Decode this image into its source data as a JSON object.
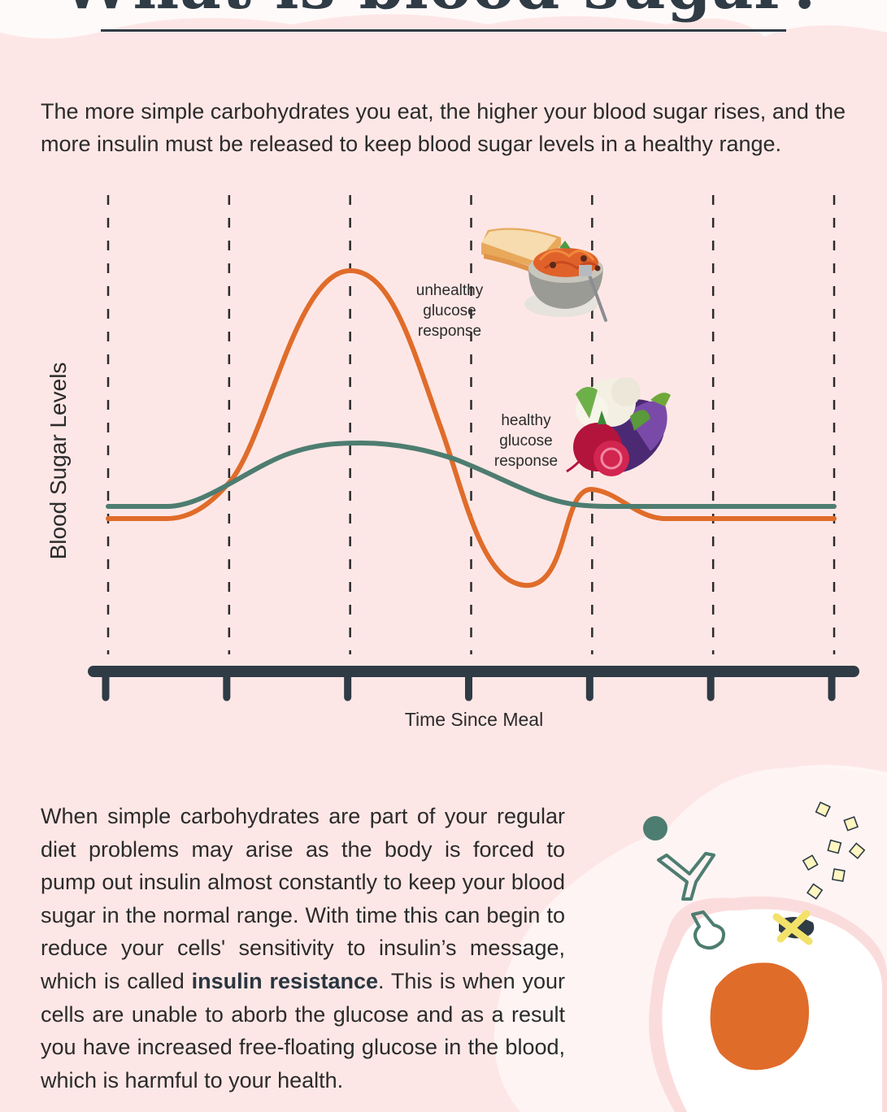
{
  "header": {
    "title": "What is blood sugar?"
  },
  "intro": {
    "text": "The more simple carbohydrates you eat, the higher your blood sugar rises, and the more insulin must be released to keep blood sugar levels in a healthy range."
  },
  "chart_data": {
    "type": "line",
    "ylabel": "Blood Sugar Levels",
    "xlabel": "Time Since Meal",
    "x_ticks": 7,
    "grid": "vertical-dashed",
    "series": [
      {
        "name": "unhealthy glucose response",
        "label_lines": [
          "unhealthy",
          "glucose",
          "response"
        ],
        "color": "#e06c2a",
        "shape": "high spike, then dip below baseline, small rebound, return to baseline"
      },
      {
        "name": "healthy glucose response",
        "label_lines": [
          "healthy",
          "glucose",
          "response"
        ],
        "color": "#4d7d70",
        "shape": "gentle rise and fall back to baseline"
      }
    ],
    "illustrations": [
      "bread-pasta-icon",
      "vegetables-icon"
    ]
  },
  "body": {
    "text_before": "When simple carbohydrates are part of your regular diet problems may arise as the body is forced to pump out insulin almost constantly to keep your blood sugar in the normal range. With time this can begin to reduce your cells' sensitivity to insulin’s message, which is called ",
    "bold_term": "insulin resistance",
    "text_after": ". This is when your cells are unable to aborb the glucose and as a result you have increased free-floating glucose in the blood, which is harmful to your health."
  },
  "colors": {
    "background": "#fde7e6",
    "unhealthy": "#e06c2a",
    "healthy": "#4d7d70",
    "axis": "#2f3b45"
  }
}
